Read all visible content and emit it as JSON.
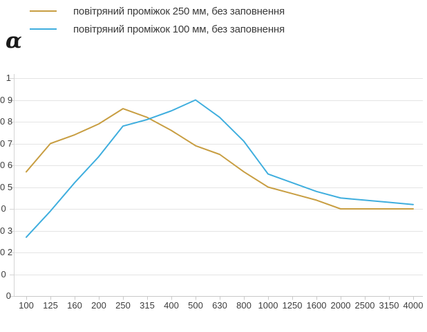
{
  "y_axis_title": "α",
  "legend": {
    "items": [
      {
        "id": "250mm",
        "label": "повітряний проміжок 250 мм, без заповнення",
        "color": "#C89E42"
      },
      {
        "id": "100mm",
        "label": "повітряний проміжок 100 мм, без заповнення",
        "color": "#3FAEDE"
      }
    ]
  },
  "chart_data": {
    "type": "line",
    "title": "",
    "xlabel": "",
    "ylabel": "α",
    "ylim": [
      0,
      1
    ],
    "grid": "horizontal",
    "legend_position": "top-left",
    "categories": [
      "100",
      "125",
      "160",
      "200",
      "250",
      "315",
      "400",
      "500",
      "630",
      "800",
      "1000",
      "1250",
      "1600",
      "2000",
      "2500",
      "3150",
      "4000"
    ],
    "y_tick_values": [
      1,
      0.9,
      0.8,
      0.7,
      0.6,
      0.5,
      0.4,
      0.3,
      0.2,
      0.1,
      0
    ],
    "y_tick_labels_displayed": [
      "1",
      "0 9",
      "0 8",
      "0 7",
      "0 6",
      "0 5",
      "0  ",
      "0 3",
      "0 2",
      "0  ",
      "0"
    ],
    "series": [
      {
        "name": "повітряний проміжок 250 мм, без заповнення",
        "color": "#C89E42",
        "values": [
          0.57,
          0.7,
          0.74,
          0.79,
          0.86,
          0.82,
          0.76,
          0.69,
          0.65,
          0.57,
          0.5,
          0.47,
          0.44,
          0.4,
          0.4,
          0.4,
          0.4
        ]
      },
      {
        "name": "повітряний проміжок 100 мм, без заповнення",
        "color": "#3FAEDE",
        "values": [
          0.27,
          0.39,
          0.52,
          0.64,
          0.78,
          0.81,
          0.85,
          0.9,
          0.82,
          0.71,
          0.56,
          0.52,
          0.48,
          0.45,
          0.44,
          0.43,
          0.42
        ]
      }
    ]
  }
}
